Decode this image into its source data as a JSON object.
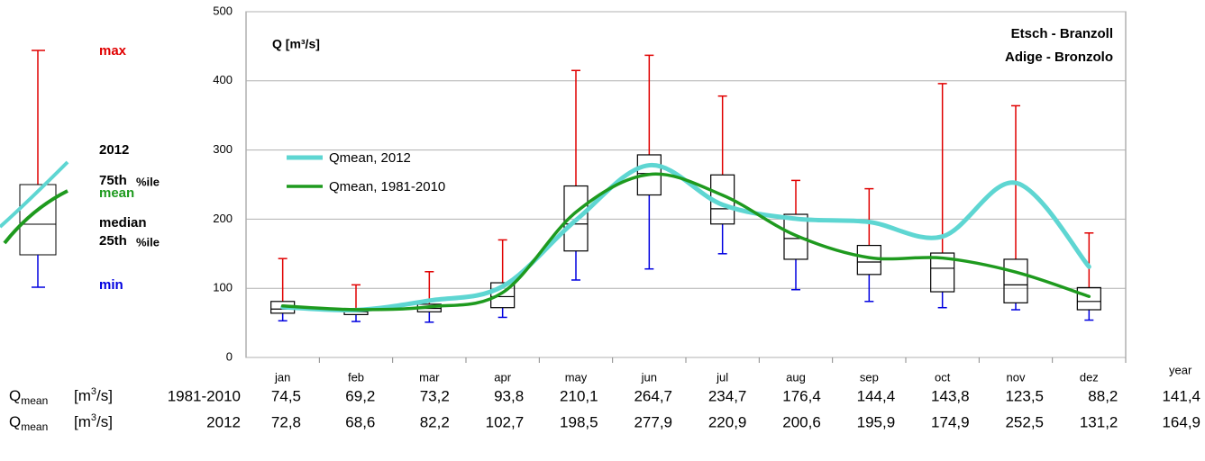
{
  "chart_data": {
    "type": "box",
    "y_label": "Q [m³/s]",
    "title_lines": [
      "Etsch - Branzoll",
      "Adige - Bronzolo"
    ],
    "categories": [
      "jan",
      "feb",
      "mar",
      "apr",
      "may",
      "jun",
      "jul",
      "aug",
      "sep",
      "oct",
      "nov",
      "dez"
    ],
    "year_label": "year",
    "ylim": [
      0,
      500
    ],
    "yticks": [
      0,
      100,
      200,
      300,
      400,
      500
    ],
    "grid": true,
    "box_color": "#000000",
    "upper_whisker_color": "#e00000",
    "lower_whisker_color": "#0000e0",
    "boxes": [
      {
        "min": 53,
        "q1": 64,
        "median": 70,
        "q3": 81,
        "max": 143
      },
      {
        "min": 52,
        "q1": 62,
        "median": 66,
        "q3": 70,
        "max": 105
      },
      {
        "min": 51,
        "q1": 66,
        "median": 71,
        "q3": 77,
        "max": 124
      },
      {
        "min": 58,
        "q1": 72,
        "median": 88,
        "q3": 108,
        "max": 170
      },
      {
        "min": 112,
        "q1": 154,
        "median": 193,
        "q3": 248,
        "max": 415
      },
      {
        "min": 128,
        "q1": 235,
        "median": 266,
        "q3": 293,
        "max": 437
      },
      {
        "min": 150,
        "q1": 193,
        "median": 215,
        "q3": 264,
        "max": 378
      },
      {
        "min": 98,
        "q1": 142,
        "median": 172,
        "q3": 207,
        "max": 256
      },
      {
        "min": 81,
        "q1": 120,
        "median": 138,
        "q3": 162,
        "max": 244
      },
      {
        "min": 72,
        "q1": 95,
        "median": 129,
        "q3": 151,
        "max": 396
      },
      {
        "min": 69,
        "q1": 79,
        "median": 105,
        "q3": 142,
        "max": 364
      },
      {
        "min": 54,
        "q1": 69,
        "median": 81,
        "q3": 101,
        "max": 180
      }
    ],
    "series": [
      {
        "name": "Qmean, 2012",
        "color": "#5ed6d2",
        "values": [
          72.8,
          68.6,
          82.2,
          102.7,
          198.5,
          277.9,
          220.9,
          200.6,
          195.9,
          174.9,
          252.5,
          131.2
        ],
        "value_labels": [
          "72,8",
          "68,6",
          "82,2",
          "102,7",
          "198,5",
          "277,9",
          "220,9",
          "200,6",
          "195,9",
          "174,9",
          "252,5",
          "131,2"
        ],
        "year_value": 164.9,
        "year_value_label": "164,9"
      },
      {
        "name": "Qmean, 1981-2010",
        "color": "#1e9a1e",
        "values": [
          74.5,
          69.2,
          73.2,
          93.8,
          210.1,
          264.7,
          234.7,
          176.4,
          144.4,
          143.8,
          123.5,
          88.2
        ],
        "value_labels": [
          "74,5",
          "69,2",
          "73,2",
          "93,8",
          "210,1",
          "264,7",
          "234,7",
          "176,4",
          "144,4",
          "143,8",
          "123,5",
          "88,2"
        ],
        "year_value": 141.4,
        "year_value_label": "141,4"
      }
    ]
  },
  "key": {
    "max": "max",
    "year": "2012",
    "q3": "75th",
    "pct": "%ile",
    "mean": "mean",
    "median": "median",
    "q1": "25th",
    "min": "min"
  },
  "table": {
    "rows": [
      {
        "symbol": "Q",
        "subscript": "mean",
        "unit_pre": "[m",
        "unit_sup": "3",
        "unit_post": "/s]",
        "period": "1981-2010",
        "series": 1
      },
      {
        "symbol": "Q",
        "subscript": "mean",
        "unit_pre": "[m",
        "unit_sup": "3",
        "unit_post": "/s]",
        "period": "2012",
        "series": 0
      }
    ]
  }
}
